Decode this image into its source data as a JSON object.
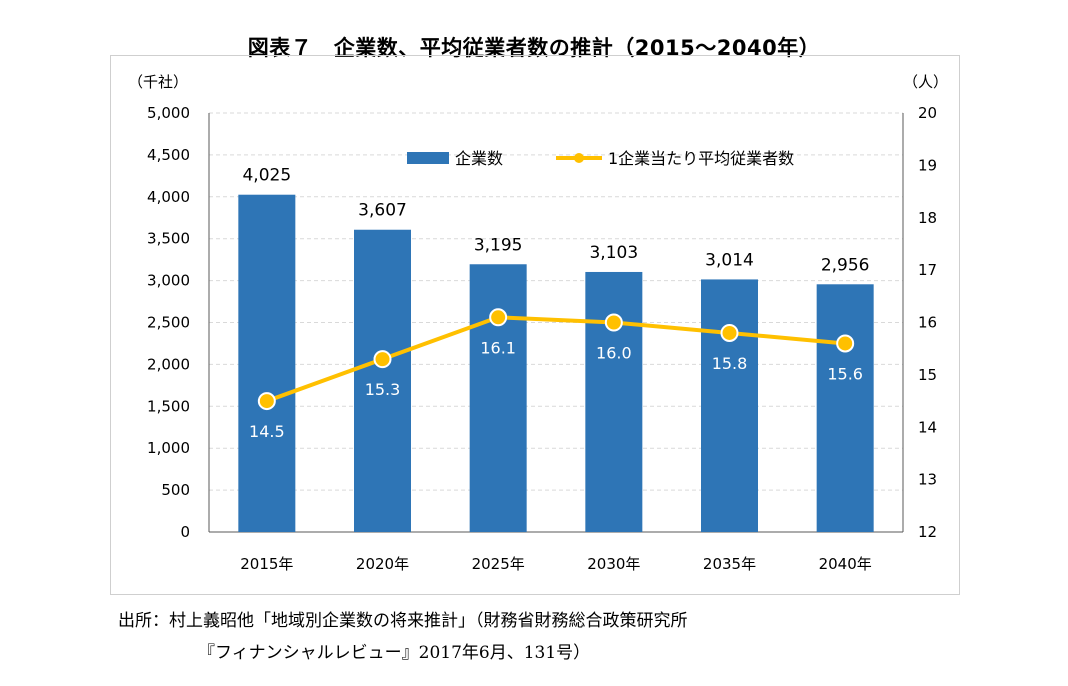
{
  "title": "図表７　企業数、平均従業者数の推計（2015～2040年）",
  "source": {
    "line1": "出所：村上義昭他「地域別企業数の将来推計」（財務省財務総合政策研究所",
    "line2": "『フィナンシャルレビュー』2017年6月、131号）"
  },
  "colors": {
    "bar": "#2e75b6",
    "line": "#ffc000",
    "grid": "#d9d9d9"
  },
  "chart_data": {
    "type": "bar",
    "categories": [
      "2015年",
      "2020年",
      "2025年",
      "2030年",
      "2035年",
      "2040年"
    ],
    "series": [
      {
        "name": "企業数",
        "type": "bar",
        "axis": "left",
        "values": [
          4025,
          3607,
          3195,
          3103,
          3014,
          2956
        ],
        "labels": [
          "4,025",
          "3,607",
          "3,195",
          "3,103",
          "3,014",
          "2,956"
        ]
      },
      {
        "name": "1企業当たり平均従業者数",
        "type": "line",
        "axis": "right",
        "values": [
          14.5,
          15.3,
          16.1,
          16.0,
          15.8,
          15.6
        ],
        "labels": [
          "14.5",
          "15.3",
          "16.1",
          "16.0",
          "15.8",
          "15.6"
        ]
      }
    ],
    "y_left": {
      "unit": "（千社）",
      "min": 0,
      "max": 5000,
      "ticks": [
        "0",
        "500",
        "1,000",
        "1,500",
        "2,000",
        "2,500",
        "3,000",
        "3,500",
        "4,000",
        "4,500",
        "5,000"
      ]
    },
    "y_right": {
      "unit": "（人）",
      "min": 12,
      "max": 20,
      "ticks": [
        "12",
        "13",
        "14",
        "15",
        "16",
        "17",
        "18",
        "19",
        "20"
      ]
    },
    "grid": true,
    "legend": "top-right"
  }
}
